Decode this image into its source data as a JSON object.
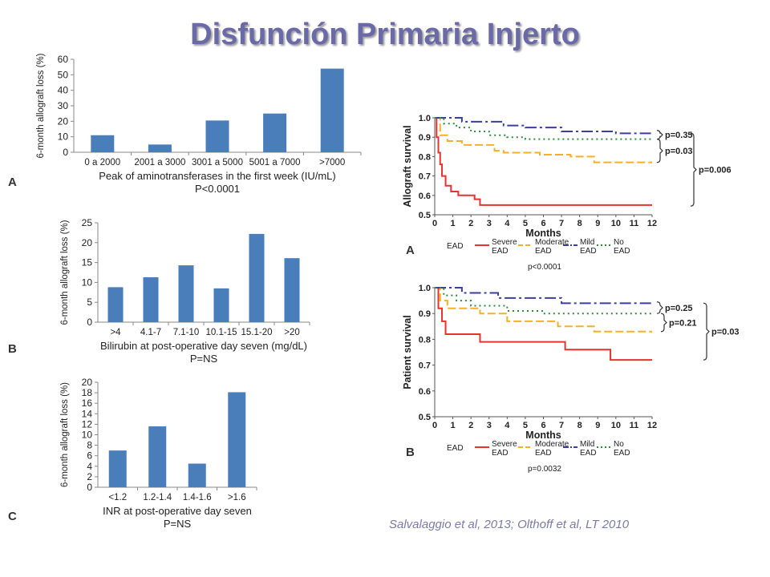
{
  "slide": {
    "title": "Disfunción Primaria Injerto",
    "citation": "Salvalaggio et al, 2013; Olthoff et al, LT 2010",
    "colors": {
      "title": "#6b6aa8",
      "bar": "#4a7ebb",
      "citation": "#7b7aa6"
    }
  },
  "chart_data": [
    {
      "panel": "A",
      "type": "bar",
      "ylabel": "6-month allograft loss (%)",
      "xlabel": "Peak of aminotransferases in the first week (IU/mL)",
      "pvalue": "P<0.0001",
      "categories": [
        "0 a 2000",
        "2001 a 3000",
        "3001 a 5000",
        "5001 a 7000",
        ">7000"
      ],
      "values": [
        11,
        5,
        20.5,
        25,
        54
      ],
      "ylim": [
        0,
        60
      ],
      "yticks": [
        0,
        10,
        20,
        30,
        40,
        50,
        60
      ],
      "color": "#4a7ebb"
    },
    {
      "panel": "B",
      "type": "bar",
      "ylabel": "6-month allograft loss (%)",
      "xlabel": "Bilirubin at post-operative day seven (mg/dL)",
      "pvalue": "P=NS",
      "categories": [
        ">4",
        "4.1-7",
        "7.1-10",
        "10.1-15",
        "15.1-20",
        ">20"
      ],
      "values": [
        8.8,
        11.3,
        14.3,
        8.5,
        22.2,
        16.1
      ],
      "ylim": [
        0,
        25
      ],
      "yticks": [
        0,
        5,
        10,
        15,
        20,
        25
      ],
      "color": "#4a7ebb"
    },
    {
      "panel": "C",
      "type": "bar",
      "ylabel": "6-month allograft loss (%)",
      "xlabel": "INR at post-operative day seven",
      "pvalue": "P=NS",
      "categories": [
        "<1.2",
        "1.2-1.4",
        "1.4-1.6",
        ">1.6"
      ],
      "values": [
        7,
        11.6,
        4.5,
        18.1
      ],
      "ylim": [
        0,
        20
      ],
      "yticks": [
        0,
        2,
        4,
        6,
        8,
        10,
        12,
        14,
        16,
        18,
        20
      ],
      "color": "#4a7ebb"
    },
    {
      "panel": "A",
      "type": "line",
      "ylabel": "Allograft survival",
      "xlabel": "Months",
      "xlim": [
        0,
        12
      ],
      "ylim": [
        0.5,
        1.0
      ],
      "xticks": [
        0,
        1,
        2,
        3,
        4,
        5,
        6,
        7,
        8,
        9,
        10,
        11,
        12
      ],
      "yticks": [
        0.5,
        0.6,
        0.7,
        0.8,
        0.9,
        1.0
      ],
      "legend_title": "EAD",
      "pvalue": "p<0.0001",
      "comparisons": [
        "p=0.35",
        "p=0.03",
        "p=0.006"
      ],
      "series": [
        {
          "name": "Severe EAD",
          "color": "#e8322d",
          "dash": "none",
          "x": [
            0,
            0.1,
            0.2,
            0.3,
            0.4,
            0.6,
            0.9,
            1.3,
            2.2,
            2.5,
            12
          ],
          "y": [
            1.0,
            0.9,
            0.82,
            0.76,
            0.7,
            0.65,
            0.62,
            0.6,
            0.58,
            0.55,
            0.55
          ]
        },
        {
          "name": "Moderate EAD",
          "color": "#f5b027",
          "dash": "10,4",
          "x": [
            0,
            0.3,
            0.7,
            1.5,
            3.3,
            3.8,
            5.8,
            7.5,
            8.8,
            12
          ],
          "y": [
            1.0,
            0.91,
            0.88,
            0.86,
            0.83,
            0.82,
            0.81,
            0.8,
            0.77,
            0.77
          ]
        },
        {
          "name": "Mild EAD",
          "color": "#3a3f9f",
          "dash": "14,4,3,4",
          "x": [
            0,
            1.5,
            3.8,
            5.0,
            7.0,
            10.0,
            12
          ],
          "y": [
            1.0,
            0.98,
            0.96,
            0.95,
            0.93,
            0.92,
            0.92
          ]
        },
        {
          "name": "No EAD",
          "color": "#2e8b3a",
          "dash": "2,4",
          "x": [
            0,
            0.5,
            1.2,
            2.0,
            3.0,
            4.0,
            5.0,
            6.0,
            12
          ],
          "y": [
            1.0,
            0.97,
            0.95,
            0.93,
            0.91,
            0.9,
            0.89,
            0.89,
            0.89
          ]
        }
      ]
    },
    {
      "panel": "B",
      "type": "line",
      "ylabel": "Patient survival",
      "xlabel": "Months",
      "xlim": [
        0,
        12
      ],
      "ylim": [
        0.5,
        1.0
      ],
      "xticks": [
        0,
        1,
        2,
        3,
        4,
        5,
        6,
        7,
        8,
        9,
        10,
        11,
        12
      ],
      "yticks": [
        0.5,
        0.6,
        0.7,
        0.8,
        0.9,
        1.0
      ],
      "legend_title": "EAD",
      "pvalue": "p=0.0032",
      "comparisons": [
        "p=0.25",
        "p=0.21",
        "p=0.03"
      ],
      "series": [
        {
          "name": "Severe EAD",
          "color": "#e8322d",
          "dash": "none",
          "x": [
            0,
            0.2,
            0.4,
            0.6,
            2.5,
            7.2,
            9.7,
            12
          ],
          "y": [
            1.0,
            0.92,
            0.87,
            0.82,
            0.79,
            0.76,
            0.72,
            0.72
          ]
        },
        {
          "name": "Moderate EAD",
          "color": "#f5b027",
          "dash": "10,4",
          "x": [
            0,
            0.3,
            0.7,
            2.5,
            4.0,
            6.8,
            8.8,
            12
          ],
          "y": [
            1.0,
            0.95,
            0.92,
            0.9,
            0.87,
            0.85,
            0.83,
            0.83
          ]
        },
        {
          "name": "Mild EAD",
          "color": "#3a3f9f",
          "dash": "14,4,3,4",
          "x": [
            0,
            1.5,
            3.5,
            7.0,
            12
          ],
          "y": [
            1.0,
            0.98,
            0.96,
            0.94,
            0.94
          ]
        },
        {
          "name": "No EAD",
          "color": "#2e8b3a",
          "dash": "2,4",
          "x": [
            0,
            0.5,
            1.2,
            2.0,
            4.0,
            6.0,
            12
          ],
          "y": [
            1.0,
            0.97,
            0.95,
            0.93,
            0.91,
            0.9,
            0.9
          ]
        }
      ]
    }
  ]
}
